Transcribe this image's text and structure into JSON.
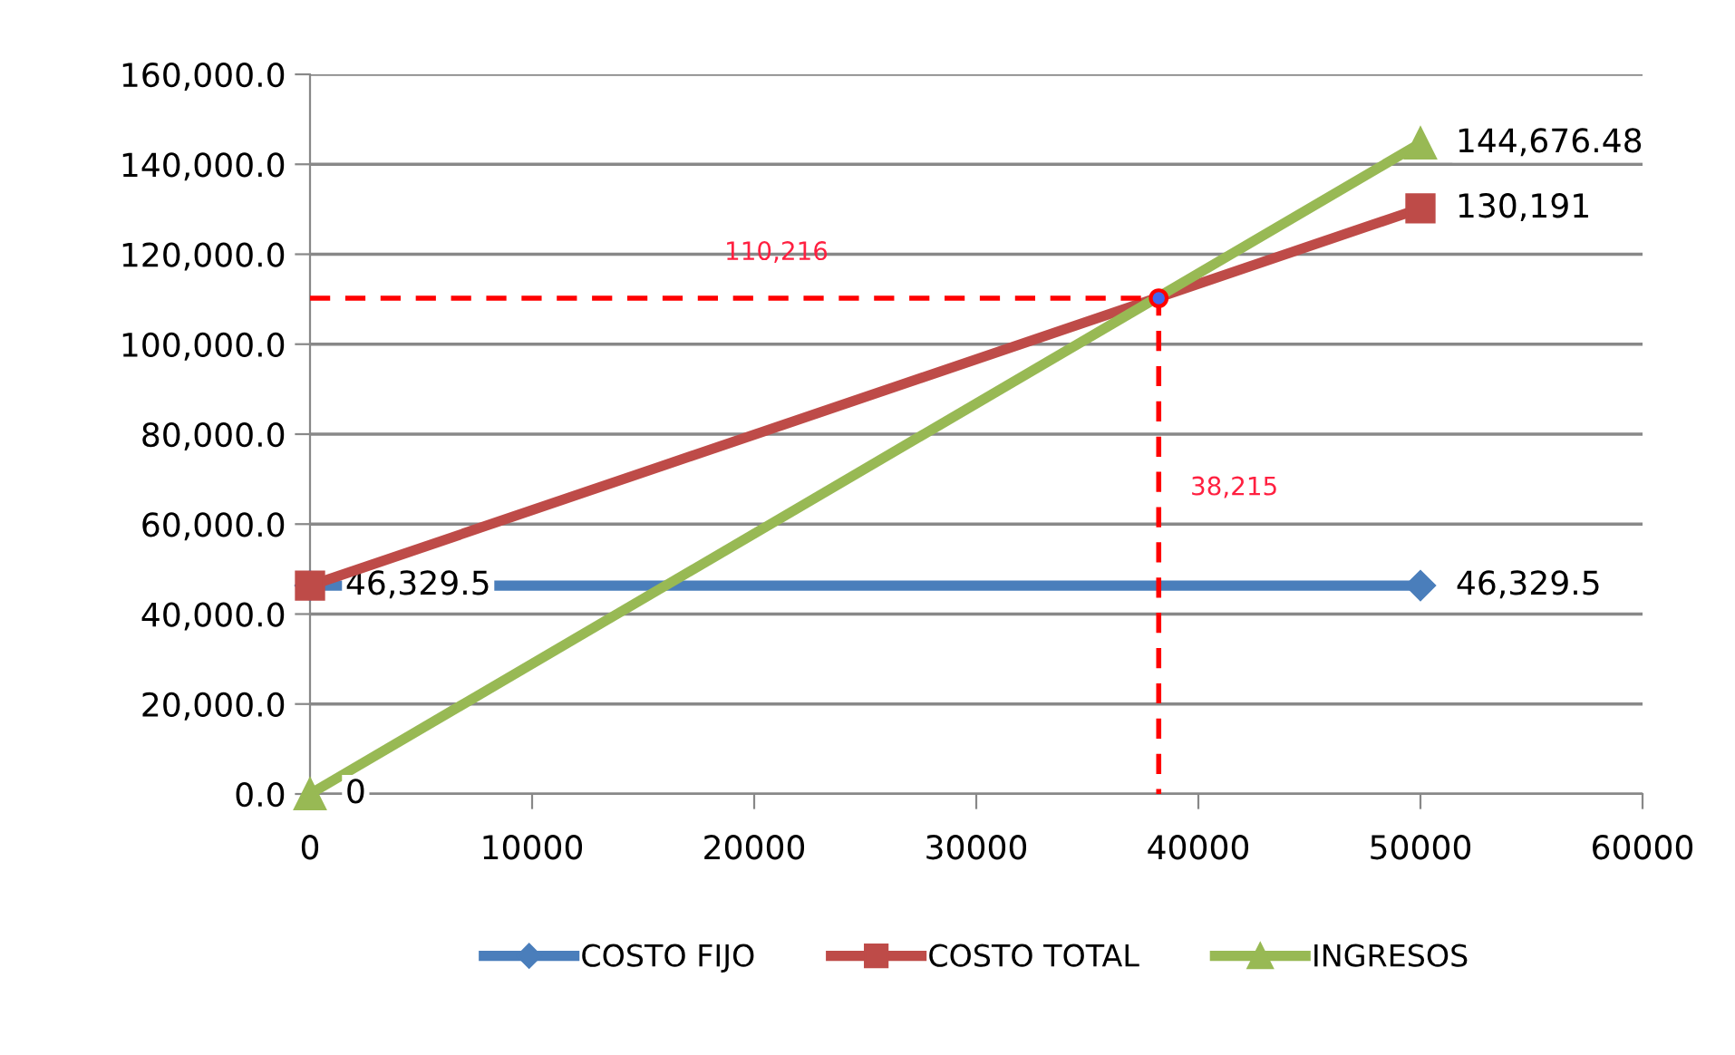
{
  "chart_data": {
    "type": "line",
    "xlim": [
      0,
      60000
    ],
    "xticks": [
      0,
      10000,
      20000,
      30000,
      40000,
      50000,
      60000
    ],
    "ylim": [
      0,
      160000
    ],
    "yticks": [
      {
        "value": 0,
        "label": "0.0"
      },
      {
        "value": 20000,
        "label": "20,000.0"
      },
      {
        "value": 40000,
        "label": "40,000.0"
      },
      {
        "value": 60000,
        "label": "60,000.0"
      },
      {
        "value": 80000,
        "label": "80,000.0"
      },
      {
        "value": 100000,
        "label": "100,000.0"
      },
      {
        "value": 120000,
        "label": "120,000.0"
      },
      {
        "value": 140000,
        "label": "140,000.0"
      },
      {
        "value": 160000,
        "label": "160,000.0"
      }
    ],
    "grid": "y",
    "legend": "bottom",
    "series": [
      {
        "name": "COSTO FIJO",
        "color": "#4a7ebb",
        "marker": "diamond",
        "x": [
          0,
          50000
        ],
        "values": [
          46329.5,
          46329.5
        ],
        "value_labels": [
          "46,329.5",
          "46,329.5"
        ]
      },
      {
        "name": "COSTO TOTAL",
        "color": "#be4b48",
        "marker": "square",
        "x": [
          0,
          50000
        ],
        "values": [
          46329.5,
          130191
        ],
        "value_labels": [
          null,
          "130,191"
        ]
      },
      {
        "name": "INGRESOS",
        "color": "#98b954",
        "marker": "triangle",
        "x": [
          0,
          50000
        ],
        "values": [
          0,
          144676.48
        ],
        "value_labels": [
          "0",
          "144,676.48"
        ]
      },
      {
        "color": "#ff0000",
        "marker": "none",
        "line_style": "dashed",
        "x": [
          0,
          38215,
          38215
        ],
        "values": [
          110216,
          110216,
          0
        ]
      },
      {
        "type": "scatter",
        "color": "#4466ee",
        "marker": "circle",
        "x": [
          38215
        ],
        "values": [
          110216
        ]
      }
    ],
    "annotations": [
      {
        "text": "110,216",
        "x": 21000,
        "y": 110216
      },
      {
        "text": "38,215",
        "x": 38215,
        "y": 68000
      }
    ]
  }
}
